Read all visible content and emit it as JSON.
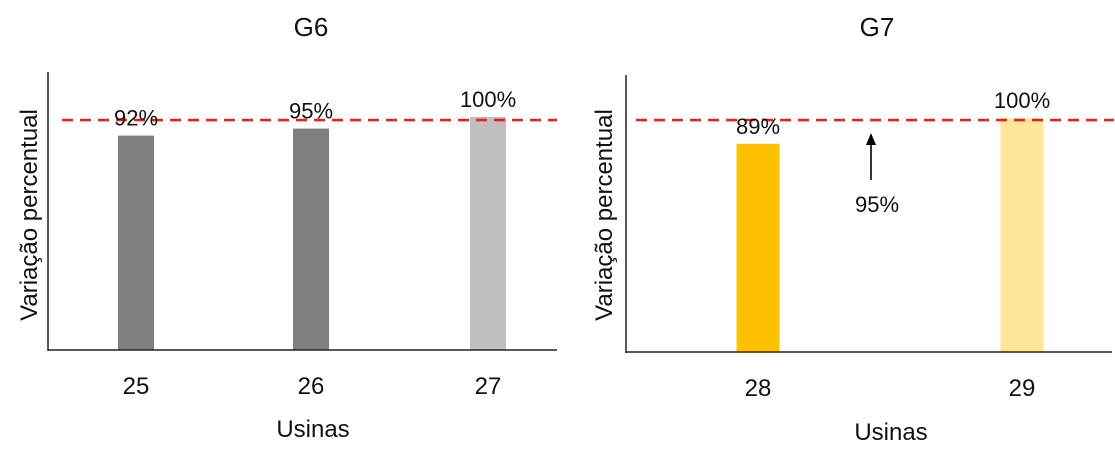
{
  "chart_data": [
    {
      "type": "bar",
      "title": "G6",
      "xlabel": "Usinas",
      "ylabel": "Variação percentual",
      "categories": [
        "25",
        "26",
        "27"
      ],
      "values": [
        92,
        95,
        100
      ],
      "data_labels": [
        "92%",
        "95%",
        "100%"
      ],
      "colors": [
        "#7f7f7f",
        "#7f7f7f",
        "#bfbfbf"
      ],
      "ylim": [
        0,
        112
      ],
      "reference_line": {
        "value": 95,
        "color": "#ee1c1c",
        "style": "dashed"
      }
    },
    {
      "type": "bar",
      "title": "G7",
      "xlabel": "Usinas",
      "ylabel": "Variação percentual",
      "categories": [
        "28",
        "29"
      ],
      "values": [
        89,
        100
      ],
      "data_labels": [
        "89%",
        "100%"
      ],
      "colors": [
        "#ffc000",
        "#ffe699"
      ],
      "ylim": [
        0,
        112
      ],
      "reference_line": {
        "value": 95,
        "color": "#ee1c1c",
        "style": "dashed"
      },
      "annotation": {
        "text": "95%",
        "arrow": "up"
      }
    }
  ]
}
